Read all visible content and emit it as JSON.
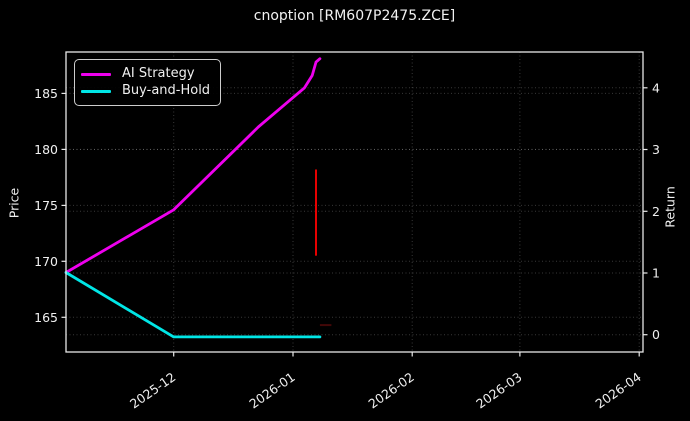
{
  "chart_data": {
    "type": "line",
    "title": "cnoption [RM607P2475.ZCE]",
    "grid": true,
    "background": "#000000",
    "spine_color": "#e8e8e8",
    "grid_color": "rgba(255,255,255,0.22)",
    "left_axis": {
      "label": "Price",
      "ticks": [
        165,
        170,
        175,
        180,
        185
      ],
      "ylim": [
        161.9,
        188.7
      ]
    },
    "right_axis": {
      "label": "Return",
      "ticks": [
        0,
        1,
        2,
        3,
        4
      ],
      "ylim": [
        -0.28,
        4.58
      ]
    },
    "x_axis": {
      "tick_labels": [
        "2025-12",
        "2026-01",
        "2026-02",
        "2026-03",
        "2026-04"
      ],
      "tick_dates": [
        "2025-12-01",
        "2026-01-01",
        "2026-02-01",
        "2026-03-01",
        "2026-04-01"
      ],
      "xlim": [
        "2025-11-03",
        "2026-04-02"
      ],
      "label_rotation_deg": 35
    },
    "legend": {
      "position": "upper-left"
    },
    "series": [
      {
        "name": "AI Strategy",
        "color": "#ee00ee",
        "axis": "left",
        "points": [
          [
            "2025-11-03",
            169.0
          ],
          [
            "2025-12-01",
            174.6
          ],
          [
            "2025-12-23",
            182.0
          ],
          [
            "2026-01-04",
            185.5
          ],
          [
            "2026-01-06",
            186.6
          ],
          [
            "2026-01-07",
            187.8
          ],
          [
            "2026-01-08",
            188.1
          ]
        ]
      },
      {
        "name": "Buy-and-Hold",
        "color": "#00e6e6",
        "axis": "left",
        "points": [
          [
            "2025-11-03",
            169.0
          ],
          [
            "2025-12-01",
            163.25
          ],
          [
            "2026-01-08",
            163.25
          ]
        ]
      }
    ],
    "annotations": [
      {
        "type": "vsegment",
        "date": "2026-01-07",
        "price_from": 170.5,
        "price_to": 178.2,
        "color": "#e60000",
        "width": 2,
        "opacity": 1
      },
      {
        "type": "hsegment",
        "date_from": "2026-01-08",
        "date_to": "2026-01-11",
        "price": 164.3,
        "color": "#7a1010",
        "width": 2,
        "opacity": 0.55
      }
    ]
  }
}
